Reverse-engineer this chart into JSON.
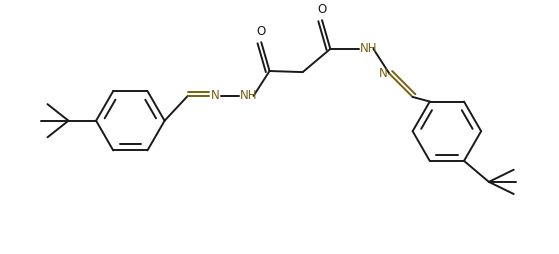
{
  "bg_color": "#ffffff",
  "line_color": "#1a1a1a",
  "line_color2": "#7a6010",
  "line_width": 1.4,
  "figsize": [
    5.59,
    2.54
  ],
  "dpi": 100,
  "xlim": [
    0,
    10.0
  ],
  "ylim": [
    0,
    4.5
  ]
}
